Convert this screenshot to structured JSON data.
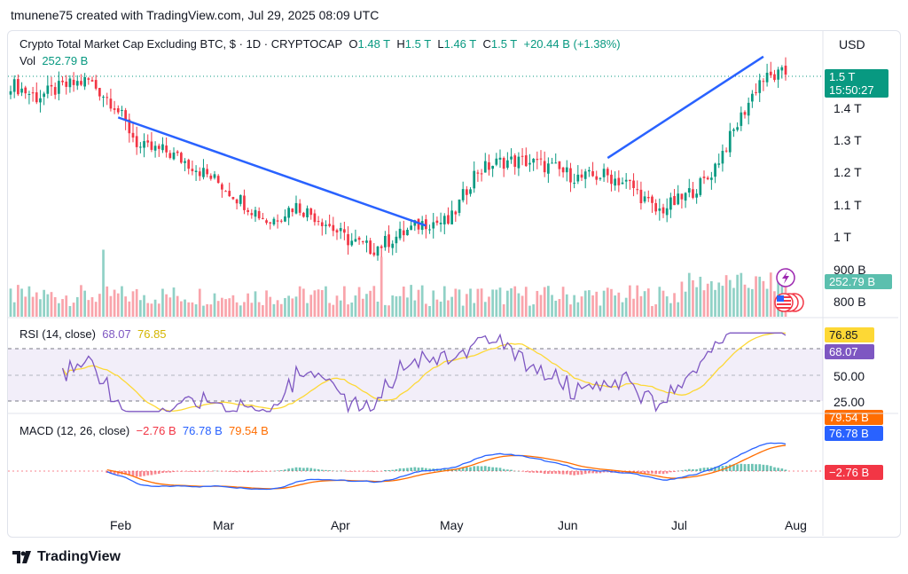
{
  "credit": "tmunene75 created with TradingView.com, Jul 29, 2025 08:09 UTC",
  "currency": "USD",
  "brand": "TradingView",
  "legend": {
    "title": "Crypto Total Market Cap Excluding BTC, $ · 1D · CRYPTOCAP",
    "o_label": "O",
    "o": "1.48 T",
    "h_label": "H",
    "h": "1.5 T",
    "l_label": "L",
    "l": "1.46 T",
    "c_label": "C",
    "c": "1.5 T",
    "change": "+20.44 B (+1.38%)",
    "vol_label": "Vol",
    "vol": "252.79 B"
  },
  "price_axis": [
    "1.4 T",
    "1.3 T",
    "1.2 T",
    "1.1 T",
    "1 T",
    "900 B",
    "800 B"
  ],
  "price_badge": {
    "value": "1.5 T",
    "countdown": "15:50:27"
  },
  "vol_badge": "252.79 B",
  "rsi": {
    "title": "RSI (14, close)",
    "rsi_value": "68.07",
    "ma_value": "76.85",
    "axis": [
      "50.00",
      "25.00"
    ],
    "badge_ma": "76.85",
    "badge_rsi": "68.07"
  },
  "macd": {
    "title": "MACD (12, 26, close)",
    "hist_value": "−2.76 B",
    "macd_value": "76.78 B",
    "signal_value": "79.54 B",
    "badge_signal": "79.54 B",
    "badge_macd": "76.78 B",
    "badge_hist": "−2.76 B"
  },
  "time_axis": [
    "Feb",
    "Mar",
    "Apr",
    "May",
    "Jun",
    "Jul",
    "Aug"
  ],
  "colors": {
    "up": "#089981",
    "down": "#f23645",
    "trendline": "#2962ff",
    "rsi_line": "#7e57c2",
    "rsi_ma": "#fdd835",
    "macd_line": "#2962ff",
    "signal_line": "#ff6d00"
  },
  "chart_data": {
    "type": "candlestick",
    "ylim": [
      0.93,
      1.56
    ],
    "series_close_approx": {
      "dates": [
        "Jan 1",
        "Jan 8",
        "Jan 15",
        "Jan 22",
        "Jan 29",
        "Feb 5",
        "Feb 12",
        "Feb 19",
        "Feb 26",
        "Mar 5",
        "Mar 12",
        "Mar 19",
        "Mar 26",
        "Apr 2",
        "Apr 9",
        "Apr 16",
        "Apr 23",
        "Apr 30",
        "May 7",
        "May 14",
        "May 21",
        "May 28",
        "Jun 4",
        "Jun 11",
        "Jun 18",
        "Jun 25",
        "Jul 2",
        "Jul 9",
        "Jul 16",
        "Jul 23",
        "Jul 29"
      ],
      "values": [
        1.47,
        1.43,
        1.46,
        1.48,
        1.41,
        1.28,
        1.27,
        1.23,
        1.18,
        1.12,
        1.06,
        1.11,
        1.07,
        1.01,
        0.98,
        1.02,
        1.06,
        1.06,
        1.21,
        1.24,
        1.24,
        1.22,
        1.19,
        1.2,
        1.17,
        1.09,
        1.13,
        1.19,
        1.33,
        1.48,
        1.5
      ]
    },
    "trendlines": [
      {
        "from": [
          "Jan 30",
          1.37
        ],
        "to": [
          "Apr 23",
          1.05
        ]
      },
      {
        "from": [
          "Jun 11",
          1.25
        ],
        "to": [
          "Jul 23",
          1.55
        ]
      }
    ]
  }
}
